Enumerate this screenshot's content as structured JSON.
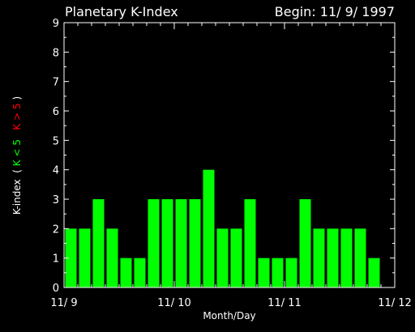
{
  "chart_data": {
    "type": "bar",
    "title": "Planetary K-Index",
    "begin_label": "Begin: 11/ 9/ 1997",
    "xlabel": "Month/Day",
    "ylabel": {
      "prefix": "K-index",
      "open": "(",
      "low": "K < 5",
      "high": "K > 5",
      "close": ")"
    },
    "ylim": [
      0,
      9
    ],
    "y_ticks": [
      "0",
      "1",
      "2",
      "3",
      "4",
      "5",
      "6",
      "7",
      "8",
      "9"
    ],
    "x_ticks": [
      "11/ 9",
      "11/ 10",
      "11/ 11",
      "11/ 12"
    ],
    "bars_per_day": 8,
    "values": [
      2,
      2,
      3,
      2,
      1,
      1,
      3,
      3,
      3,
      3,
      4,
      2,
      2,
      3,
      1,
      1,
      1,
      3,
      2,
      2,
      2,
      2,
      1
    ],
    "grid": false,
    "colors": {
      "background": "#000000",
      "axes": "#ffffff",
      "bar_low": "#00ff00",
      "bar_high": "#ff0000",
      "text": "#ffffff"
    }
  }
}
